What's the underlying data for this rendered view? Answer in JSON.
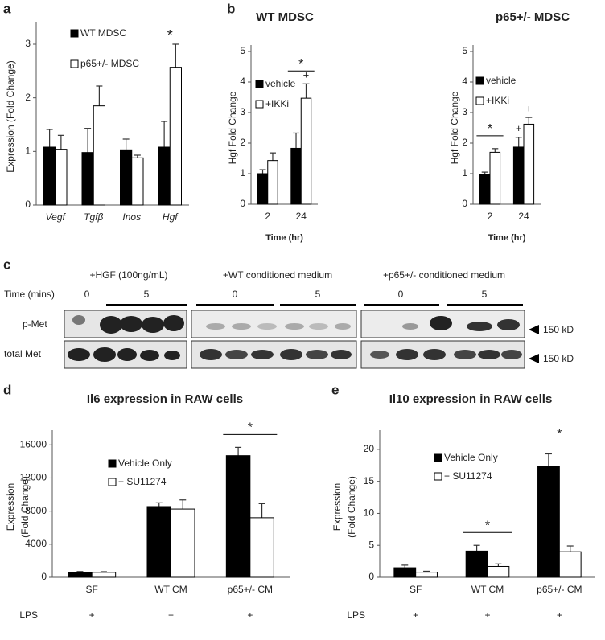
{
  "panel_labels": [
    "a",
    "b",
    "c",
    "d",
    "e"
  ],
  "blot": {
    "treatments": [
      "+HGF (100ng/mL)",
      "+WT conditioned medium",
      "+p65+/- conditioned medium"
    ],
    "time_label": "Time (mins)",
    "timepoints": [
      "0",
      "5",
      "0",
      "5",
      "0",
      "5"
    ],
    "rows": [
      "p-Met",
      "total Met"
    ],
    "sizes": [
      "150 kD",
      "150 kD"
    ]
  },
  "chart_data": [
    {
      "type": "bar",
      "y_label": [
        "Expression (Fold Change)"
      ],
      "categories": [
        "Vegf",
        "Tgfβ",
        "Inos",
        "Hgf"
      ],
      "series": [
        {
          "name": "WT MDSC",
          "color": "#000000",
          "values": [
            1.08,
            0.98,
            1.03,
            1.08
          ],
          "errors": [
            0.33,
            0.45,
            0.2,
            0.48
          ]
        },
        {
          "name": "p65+/- MDSC",
          "color": "#ffffff",
          "values": [
            1.04,
            1.85,
            0.88,
            2.57
          ],
          "errors": [
            0.26,
            0.37,
            0.05,
            0.43
          ]
        }
      ],
      "ylim": [
        0,
        3.3
      ],
      "yticks": [
        0,
        1,
        2,
        3
      ],
      "annotations": [
        {
          "text": "*",
          "category": 3
        }
      ]
    },
    {
      "type": "bar",
      "title": "WT MDSC",
      "y_label": [
        "Hgf Fold Change"
      ],
      "x_label": "Time (hr)",
      "categories": [
        "2",
        "24"
      ],
      "series": [
        {
          "name": "vehicle",
          "color": "#000000",
          "values": [
            1.0,
            1.83
          ],
          "errors": [
            0.13,
            0.5
          ]
        },
        {
          "name": "+IKKi",
          "color": "#ffffff",
          "values": [
            1.43,
            3.47
          ],
          "errors": [
            0.25,
            0.47
          ]
        }
      ],
      "ylim": [
        0,
        5
      ],
      "yticks": [
        0,
        1,
        2,
        3,
        4,
        5
      ],
      "annotations": [
        {
          "text": "*",
          "category": 1,
          "bracket": true
        },
        {
          "text": "+",
          "category": 1,
          "series": 1
        }
      ]
    },
    {
      "type": "bar",
      "title": "p65+/- MDSC",
      "y_label": [
        "Hgf Fold Change"
      ],
      "x_label": "Time (hr)",
      "categories": [
        "2",
        "24"
      ],
      "series": [
        {
          "name": "vehicle",
          "color": "#000000",
          "values": [
            0.97,
            1.87
          ],
          "errors": [
            0.08,
            0.32
          ]
        },
        {
          "name": "+IKKi",
          "color": "#ffffff",
          "values": [
            1.7,
            2.62
          ],
          "errors": [
            0.12,
            0.22
          ]
        }
      ],
      "ylim": [
        0,
        5
      ],
      "yticks": [
        0,
        1,
        2,
        3,
        4,
        5
      ],
      "annotations": [
        {
          "text": "*",
          "category": 0,
          "bracket": true
        },
        {
          "text": "+",
          "category": 1,
          "series": 0
        },
        {
          "text": "+",
          "category": 1,
          "series": 1
        }
      ]
    },
    {
      "type": "bar",
      "title": "Il6 expression in RAW cells",
      "y_label": [
        "Expression",
        "(Fold Change)"
      ],
      "categories": [
        "SF",
        "WT CM",
        "p65+/- CM"
      ],
      "series": [
        {
          "name": "Vehicle Only",
          "color": "#000000",
          "values": [
            600,
            8550,
            14700
          ],
          "errors": [
            100,
            450,
            1000
          ]
        },
        {
          "name": "+ SU11274",
          "color": "#ffffff",
          "values": [
            600,
            8250,
            7200
          ],
          "errors": [
            80,
            1100,
            1700
          ]
        }
      ],
      "ylim": [
        0,
        17000
      ],
      "yticks": [
        0,
        4000,
        8000,
        12000,
        16000
      ],
      "annotations": [
        {
          "text": "*",
          "category": 2,
          "bracket": true
        }
      ],
      "treatment_row": {
        "label": "LPS",
        "marks": [
          "+",
          "+",
          "+"
        ]
      }
    },
    {
      "type": "bar",
      "title": "Il10 expression in RAW cells",
      "y_label": [
        "Expression",
        "(Fold Change)"
      ],
      "categories": [
        "SF",
        "WT CM",
        "p65+/- CM"
      ],
      "series": [
        {
          "name": "Vehicle Only",
          "color": "#000000",
          "values": [
            1.5,
            4.1,
            17.3
          ],
          "errors": [
            0.4,
            0.9,
            2.0
          ]
        },
        {
          "name": "+ SU11274",
          "color": "#ffffff",
          "values": [
            0.8,
            1.7,
            4.0
          ],
          "errors": [
            0.15,
            0.4,
            0.9
          ]
        }
      ],
      "ylim": [
        0,
        22
      ],
      "yticks": [
        0,
        5,
        10,
        15,
        20
      ],
      "annotations": [
        {
          "text": "*",
          "category": 1,
          "bracket": true
        },
        {
          "text": "*",
          "category": 2,
          "bracket": true
        }
      ],
      "treatment_row": {
        "label": "LPS",
        "marks": [
          "+",
          "+",
          "+"
        ]
      }
    }
  ]
}
